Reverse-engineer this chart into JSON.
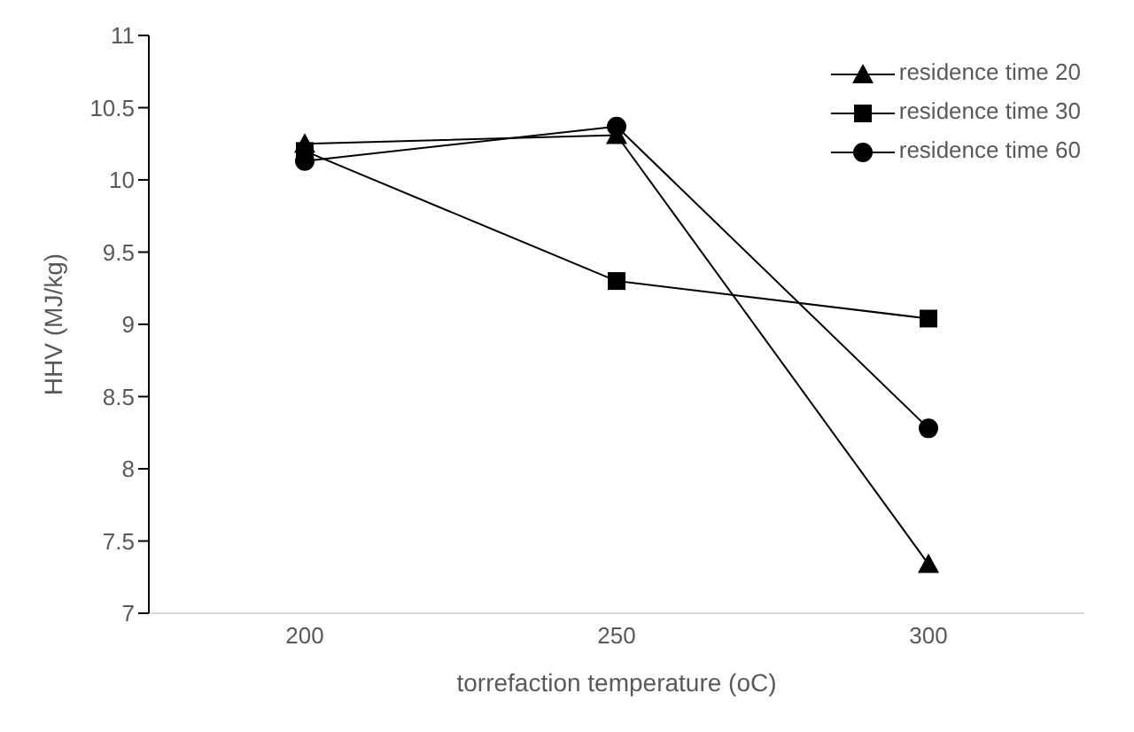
{
  "chart_data": {
    "type": "line",
    "xlabel": "torrefaction temperature (oC)",
    "ylabel": "HHV  (MJ/kg)",
    "categories": [
      "200",
      "250",
      "300"
    ],
    "series": [
      {
        "name": "residence time 20",
        "color": "#000000",
        "marker": "triangle",
        "values": [
          10.25,
          10.31,
          7.34
        ]
      },
      {
        "name": "residence time 30",
        "color": "#000000",
        "marker": "square",
        "values": [
          10.2,
          9.3,
          9.04
        ]
      },
      {
        "name": "residence time 60",
        "color": "#000000",
        "marker": "circle",
        "values": [
          10.13,
          10.37,
          8.28
        ]
      }
    ],
    "ylim": [
      7,
      11
    ],
    "yticks": [
      7,
      7.5,
      8,
      8.5,
      9,
      9.5,
      10,
      10.5,
      11
    ],
    "grid": false,
    "legend": "top right",
    "line_style": "solid"
  }
}
